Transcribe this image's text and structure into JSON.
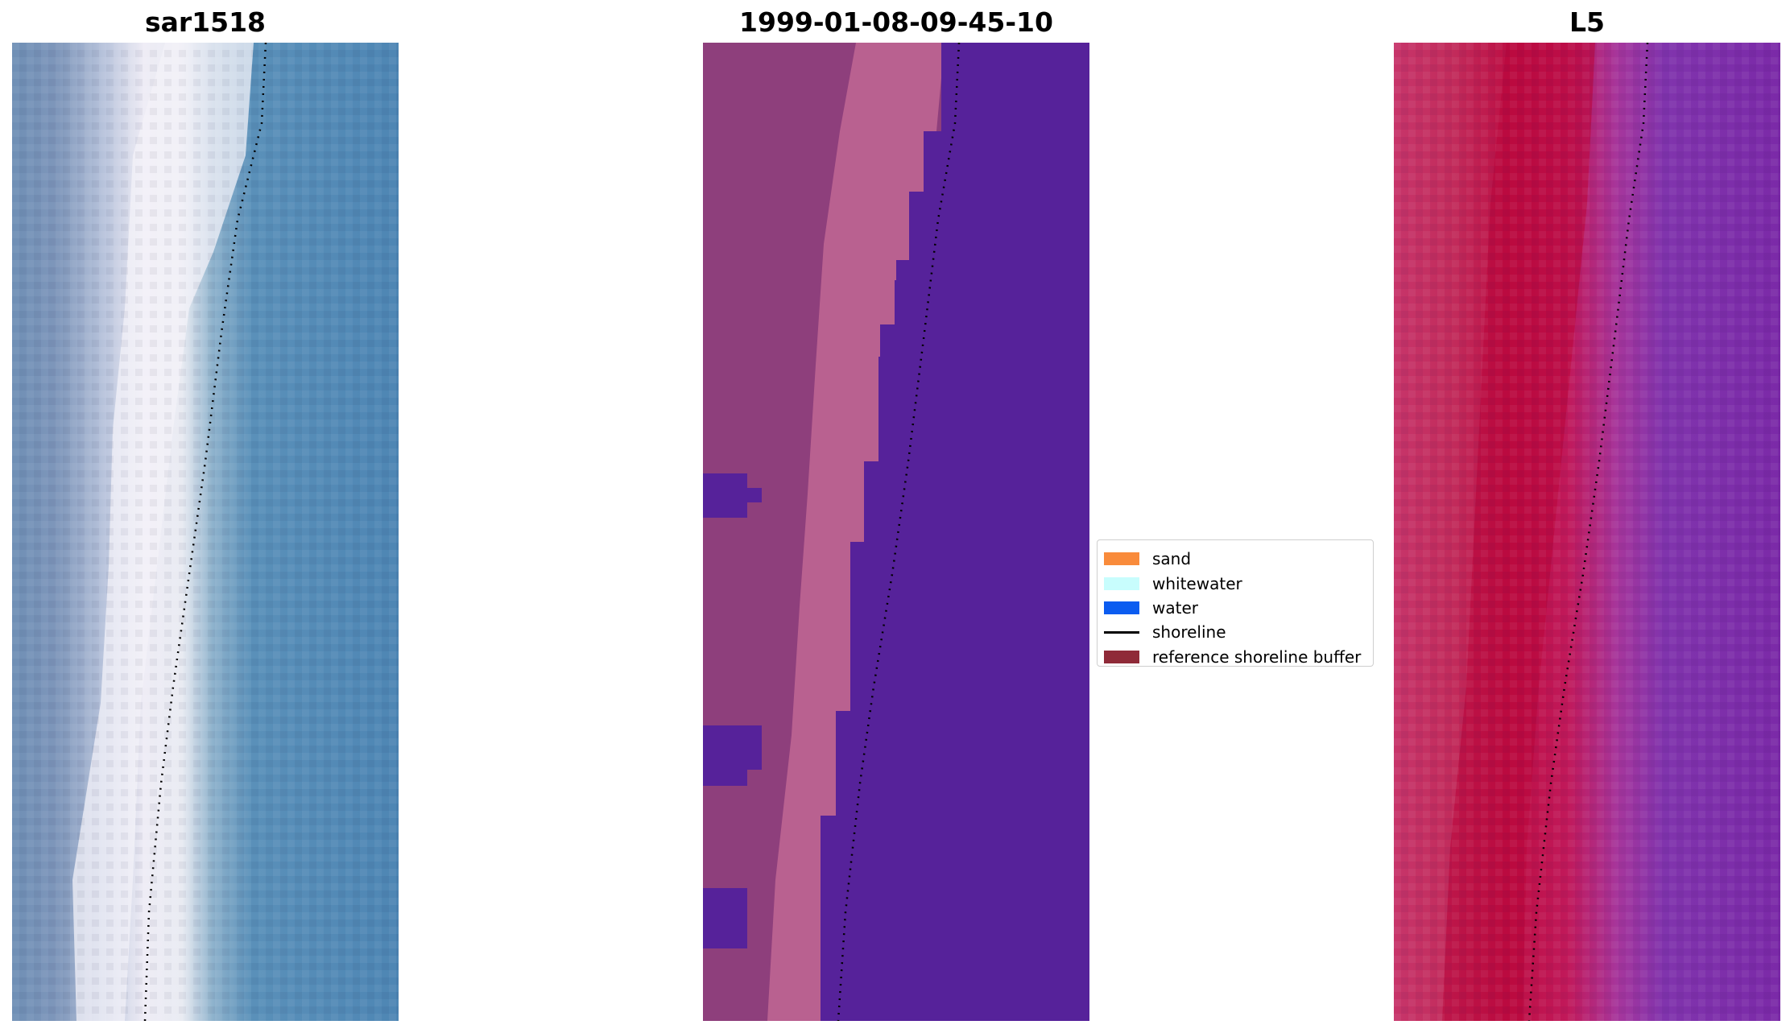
{
  "panels": {
    "left": {
      "title": "sar1518"
    },
    "middle": {
      "title": "1999-01-08-09-45-10"
    },
    "right": {
      "title": "L5"
    }
  },
  "legend": {
    "items": [
      {
        "label": "sand",
        "color": "#f98b3b",
        "kind": "patch"
      },
      {
        "label": "whitewater",
        "color": "#c8fdfd",
        "kind": "patch"
      },
      {
        "label": "water",
        "color": "#0b5cf0",
        "kind": "patch"
      },
      {
        "label": "shoreline",
        "color": "#000000",
        "kind": "line"
      },
      {
        "label": "reference shoreline buffer",
        "color": "#8f2a38",
        "kind": "patch"
      }
    ]
  },
  "colors": {
    "rgb_water": "#4f86b3",
    "rgb_surf": "#f0eef6",
    "classified_land": "#8e3f7c",
    "classified_sand": "#b96190",
    "classified_water": "#56229a",
    "falsecolor_land": "#c22c5c",
    "falsecolor_sand": "#b8083a",
    "falsecolor_water": "#7d2ca8",
    "shoreline": "#000000"
  }
}
